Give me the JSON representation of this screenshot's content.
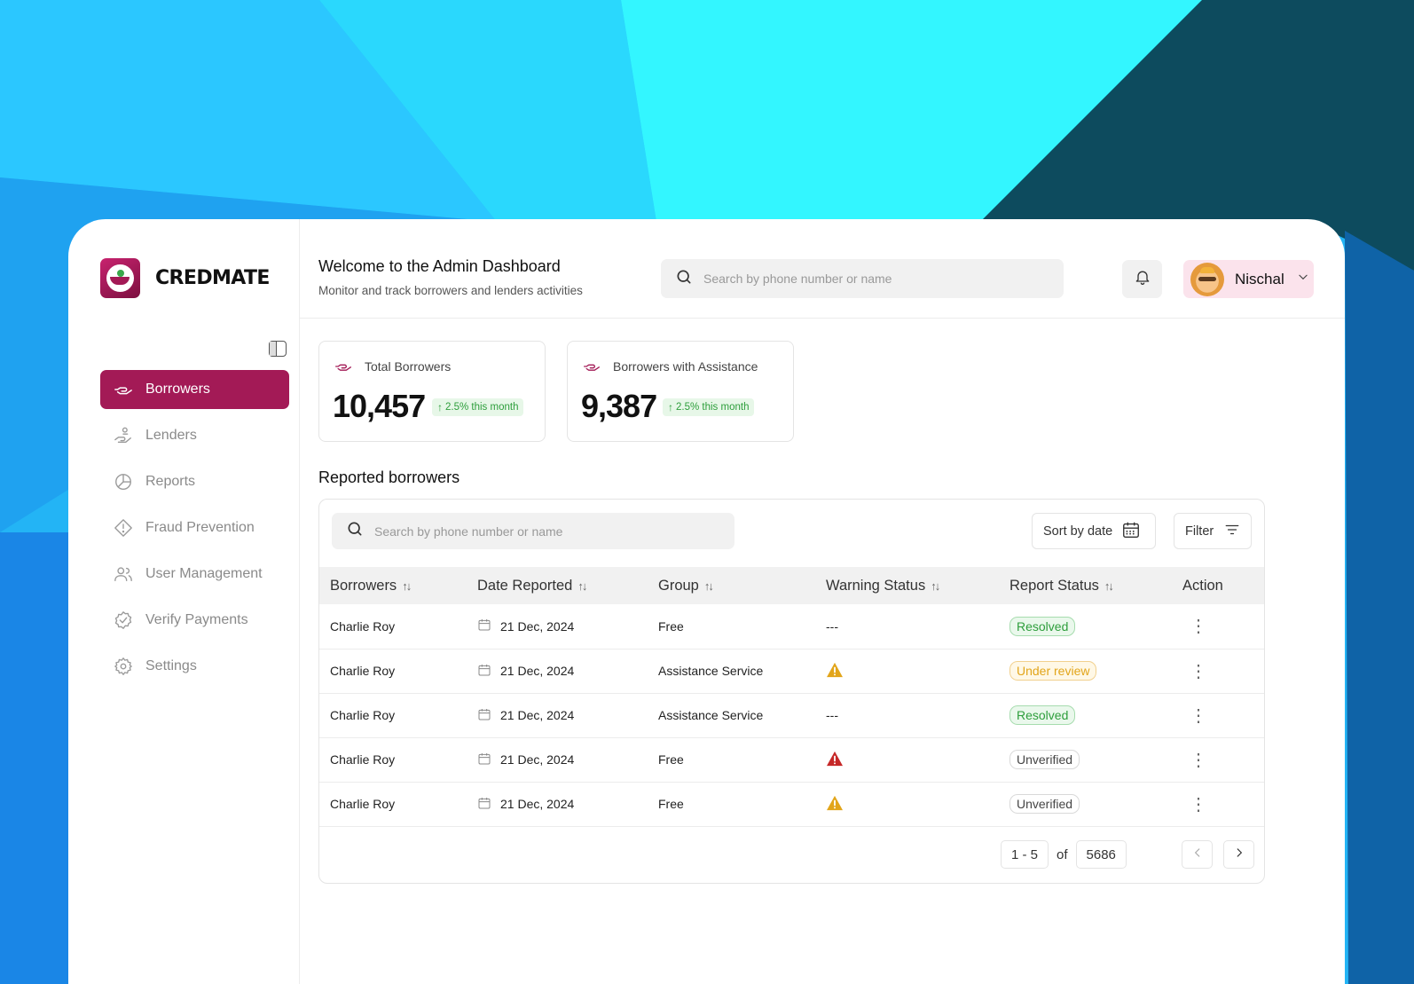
{
  "brand": {
    "name": "CREDMATE"
  },
  "sidebar": {
    "items": [
      {
        "label": "Borrowers",
        "icon": "hand-icon",
        "active": true
      },
      {
        "label": "Lenders",
        "icon": "lender-icon"
      },
      {
        "label": "Reports",
        "icon": "pie-chart-icon"
      },
      {
        "label": "Fraud Prevention",
        "icon": "warning-diamond-icon"
      },
      {
        "label": "User Management",
        "icon": "users-icon"
      },
      {
        "label": "Verify Payments",
        "icon": "verified-badge-icon"
      },
      {
        "label": "Settings",
        "icon": "gear-icon"
      }
    ]
  },
  "header": {
    "title": "Welcome to the Admin Dashboard",
    "subtitle": "Monitor and track borrowers and lenders activities",
    "search_placeholder": "Search by phone number or name",
    "user_name": "Nischal"
  },
  "stats": [
    {
      "label": "Total Borrowers",
      "value": "10,457",
      "change": "2.5% this month"
    },
    {
      "label": "Borrowers with Assistance",
      "value": "9,387",
      "change": "2.5% this month"
    }
  ],
  "reported": {
    "title": "Reported borrowers",
    "search_placeholder": "Search by phone number or name",
    "sort_label": "Sort by date",
    "filter_label": "Filter",
    "columns": [
      "Borrowers",
      "Date Reported",
      "Group",
      "Warning Status",
      "Report Status",
      "Action"
    ],
    "rows": [
      {
        "name": "Charlie Roy",
        "date": "21 Dec, 2024",
        "group": "Free",
        "warning": "---",
        "status": "Resolved"
      },
      {
        "name": "Charlie Roy",
        "date": "21 Dec, 2024",
        "group": "Assistance Service",
        "warning": "warning-yellow",
        "status": "Under review"
      },
      {
        "name": "Charlie Roy",
        "date": "21 Dec, 2024",
        "group": "Assistance Service",
        "warning": "---",
        "status": "Resolved"
      },
      {
        "name": "Charlie Roy",
        "date": "21 Dec, 2024",
        "group": "Free",
        "warning": "warning-red",
        "status": "Unverified"
      },
      {
        "name": "Charlie Roy",
        "date": "21 Dec, 2024",
        "group": "Free",
        "warning": "warning-yellow",
        "status": "Unverified"
      }
    ],
    "pagination": {
      "range": "1 - 5",
      "of_label": "of",
      "total": "5686"
    }
  },
  "colors": {
    "accent": "#a31a56",
    "success": "#2e9e3c",
    "warning": "#e2a51a",
    "danger": "#c62828"
  }
}
